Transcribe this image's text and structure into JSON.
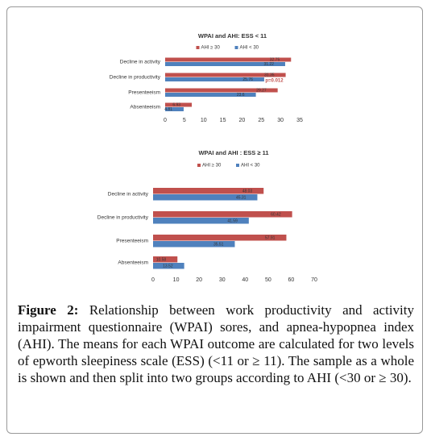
{
  "chart_data": [
    {
      "type": "bar",
      "orientation": "horizontal",
      "title": "WPAI and AHI: ESS < 11",
      "categories": [
        "Decline in activity",
        "Decline in productivity",
        "Presenteeism",
        "Absenteeism"
      ],
      "series": [
        {
          "name": "AHI ≥ 30",
          "color": "#c0504d",
          "values": [
            32.75,
            31.35,
            29.27,
            6.93
          ]
        },
        {
          "name": "AHI < 30",
          "color": "#4f81bd",
          "values": [
            31.22,
            25.76,
            23.6,
            4.81
          ]
        }
      ],
      "annotation": "p=0.012",
      "xlim": [
        0,
        35
      ],
      "xticks": [
        0,
        5,
        10,
        15,
        20,
        25,
        30,
        35
      ],
      "legend": "top"
    },
    {
      "type": "bar",
      "orientation": "horizontal",
      "title": "WPAI and AHI : ESS ≥ 11",
      "categories": [
        "Decline in activity",
        "Decline in productivity",
        "Presenteeism",
        "Absenteeism"
      ],
      "series": [
        {
          "name": "AHI ≥ 30",
          "color": "#c0504d",
          "values": [
            48.03,
            60.42,
            57.91,
            10.58
          ]
        },
        {
          "name": "AHI < 30",
          "color": "#4f81bd",
          "values": [
            45.31,
            41.59,
            35.51,
            13.52
          ]
        }
      ],
      "xlim": [
        0,
        70
      ],
      "xticks": [
        0,
        10,
        20,
        30,
        40,
        50,
        60,
        70
      ],
      "legend": "top"
    }
  ],
  "caption": {
    "label": "Figure 2:",
    "text": "Relationship between work productivity and activity impairment questionnaire (WPAI) sores, and apnea-hypopnea index (AHI). The means for each WPAI outcome are calculated for two levels of epworth sleepiness scale (ESS) (<11 or ≥ 11). The sample as a whole is shown and then split into two groups according to AHI (<30 or ≥ 30)."
  }
}
